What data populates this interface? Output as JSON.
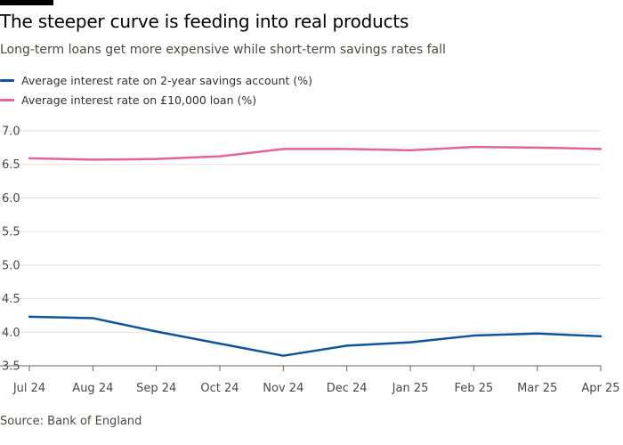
{
  "title": "The steeper curve is feeding into real products",
  "subtitle": "Long-term loans get more expensive while short-term savings rates fall",
  "source": "Source: Bank of England",
  "chart_data": {
    "type": "line",
    "categories": [
      "Jul 24",
      "Aug 24",
      "Sep 24",
      "Oct 24",
      "Nov 24",
      "Dec 24",
      "Jan 25",
      "Feb 25",
      "Mar 25",
      "Apr 25"
    ],
    "yticks": [
      "7.0",
      "6.5",
      "6.0",
      "5.5",
      "5.0",
      "4.5",
      "4.0",
      "3.5"
    ],
    "ylim": [
      3.5,
      7.0
    ],
    "grid": true,
    "legend_position": "top-left",
    "series": [
      {
        "name": "Average interest rate on 2-year savings account (%)",
        "color": "#0f5499",
        "values": [
          4.23,
          4.21,
          4.01,
          3.83,
          3.65,
          3.8,
          3.85,
          3.95,
          3.98,
          3.94
        ]
      },
      {
        "name": "Average interest rate on £10,000 loan (%)",
        "color": "#e3649a",
        "values": [
          6.59,
          6.57,
          6.58,
          6.62,
          6.73,
          6.73,
          6.71,
          6.76,
          6.75,
          6.73
        ]
      }
    ]
  }
}
